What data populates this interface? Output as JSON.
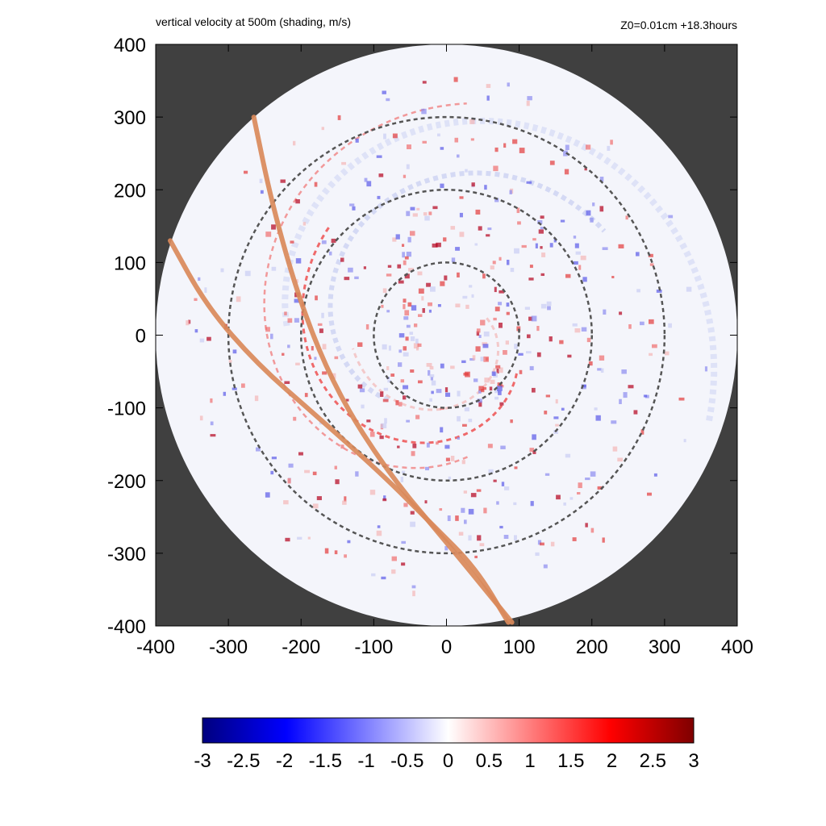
{
  "chart_data": {
    "type": "heatmap",
    "title": "vertical velocity at 500m (shading, m/s)",
    "subtitle": "Z0=0.01cm  +18.3hours",
    "xlim": [
      -400,
      400
    ],
    "ylim": [
      -400,
      400
    ],
    "x_ticks": [
      "-400",
      "-300",
      "-200",
      "-100",
      "0",
      "100",
      "200",
      "300",
      "400"
    ],
    "y_ticks": [
      "400",
      "300",
      "200",
      "100",
      "0",
      "-100",
      "-200",
      "-300",
      "-400"
    ],
    "domain_radius": 400,
    "background_color": "#404040",
    "reference_circles": {
      "radii": [
        100,
        200,
        300
      ],
      "style": "dashed",
      "color": "#555555"
    },
    "tracks": [
      {
        "color": "#d9895a",
        "points": [
          [
            -265,
            300
          ],
          [
            -240,
            180
          ],
          [
            -200,
            40
          ],
          [
            -150,
            -80
          ],
          [
            -80,
            -190
          ],
          [
            0,
            -285
          ],
          [
            90,
            -395
          ]
        ]
      },
      {
        "color": "#d9895a",
        "points": [
          [
            -380,
            130
          ],
          [
            -330,
            40
          ],
          [
            -260,
            -40
          ],
          [
            -180,
            -110
          ],
          [
            -90,
            -190
          ],
          [
            -20,
            -260
          ],
          [
            40,
            -320
          ],
          [
            85,
            -395
          ]
        ]
      }
    ],
    "colorbar": {
      "range": [
        -3,
        3
      ],
      "labels": [
        "-3",
        "-2.5",
        "-2",
        "-1.5",
        "-1",
        "-0.5",
        "0",
        "0.5",
        "1",
        "1.5",
        "2",
        "2.5",
        "3"
      ],
      "colors": [
        "#00007f",
        "#0000ff",
        "#ffffff",
        "#ff0000",
        "#7f0000"
      ]
    }
  }
}
